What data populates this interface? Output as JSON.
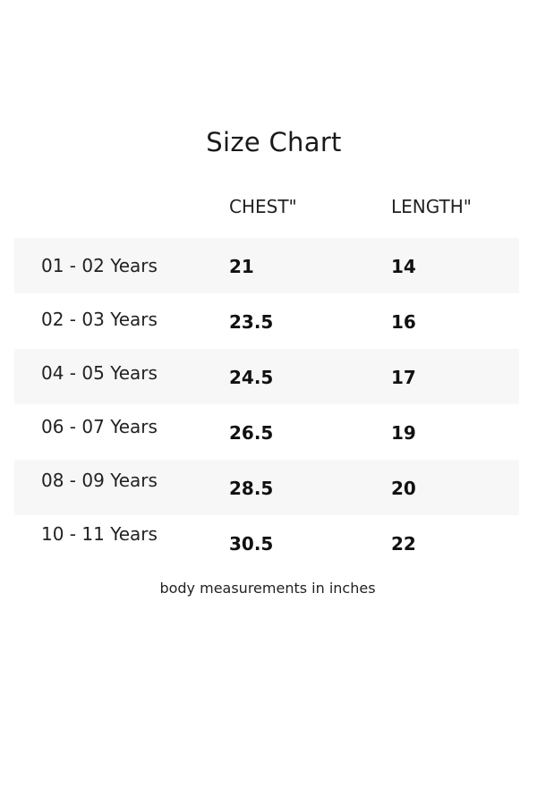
{
  "title": "Size Chart",
  "headers": {
    "chest": "CHEST\"",
    "length": "LENGTH\""
  },
  "rows": [
    {
      "age": "01 - 02 Years",
      "chest": "21",
      "length": "14"
    },
    {
      "age": "02 - 03 Years",
      "chest": "23.5",
      "length": "16"
    },
    {
      "age": "04 - 05 Years",
      "chest": "24.5",
      "length": "17"
    },
    {
      "age": "06 - 07 Years",
      "chest": "26.5",
      "length": "19"
    },
    {
      "age": "08 - 09 Years",
      "chest": "28.5",
      "length": "20"
    },
    {
      "age": "10 - 11 Years",
      "chest": "30.5",
      "length": "22"
    }
  ],
  "footnote": "body measurements in inches"
}
